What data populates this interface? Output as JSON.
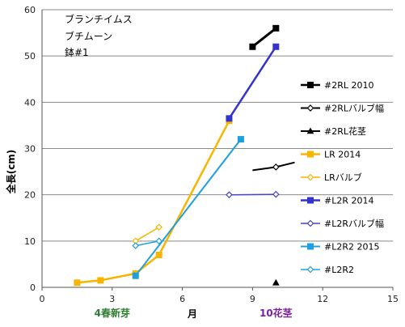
{
  "chart_data": {
    "type": "line",
    "title_lines": [
      "ブランチイムス",
      "ブチムーン",
      "鉢#1"
    ],
    "xlabel": "月",
    "ylabel": "全長(cm)",
    "xlim": [
      0,
      15
    ],
    "ylim": [
      0,
      60
    ],
    "xticks": [
      "0",
      "3",
      "6",
      "9",
      "12",
      "15"
    ],
    "yticks": [
      "0",
      "10",
      "20",
      "30",
      "40",
      "50",
      "60"
    ],
    "grid": "horizontal",
    "legend_position": "right",
    "annotations": [
      {
        "text": "4春新芽",
        "x": 3,
        "color": "#2e7d32"
      },
      {
        "text": "10花茎",
        "x": 10,
        "color": "#7b1fa2"
      }
    ],
    "series": [
      {
        "name": "#2RL 2010",
        "color": "#000000",
        "marker": "square-filled",
        "width": 3,
        "points": [
          [
            9.0,
            52
          ],
          [
            10.0,
            56
          ]
        ]
      },
      {
        "name": "#2RLバルブ幅",
        "color": "#000000",
        "marker": "diamond-open",
        "width": 2,
        "points": [
          [
            9.0,
            25.3
          ],
          [
            10.0,
            26
          ],
          [
            10.8,
            27
          ]
        ]
      },
      {
        "name": "#2RL花茎",
        "color": "#000000",
        "marker": "triangle-filled",
        "width": 2,
        "points": [
          [
            10.0,
            1
          ]
        ]
      },
      {
        "name": "LR 2014",
        "color": "#f7b500",
        "marker": "square-filled",
        "width": 2.5,
        "points": [
          [
            1.5,
            1
          ],
          [
            2.5,
            1.5
          ],
          [
            4.0,
            3
          ],
          [
            5.0,
            7
          ],
          [
            8.0,
            36
          ]
        ]
      },
      {
        "name": "LRバルブ",
        "color": "#f7b500",
        "marker": "diamond-open",
        "width": 1.5,
        "points": [
          [
            4.0,
            10
          ],
          [
            5.0,
            13
          ]
        ]
      },
      {
        "name": "#L2R 2014",
        "color": "#3333cc",
        "marker": "square-filled",
        "width": 2.5,
        "points": [
          [
            8.0,
            36.5
          ],
          [
            10.0,
            52
          ]
        ]
      },
      {
        "name": "#L2Rバルブ幅",
        "color": "#4444cc",
        "marker": "diamond-open",
        "width": 1.5,
        "points": [
          [
            8.0,
            20
          ],
          [
            10.0,
            20.1
          ]
        ]
      },
      {
        "name": "#L2R2 2015",
        "color": "#1ea0dc",
        "marker": "square-filled",
        "width": 2,
        "points": [
          [
            4.0,
            2.5
          ],
          [
            8.5,
            32
          ]
        ]
      },
      {
        "name": "#L2R2",
        "color": "#1ea0dc",
        "marker": "diamond-open",
        "width": 1.5,
        "points": [
          [
            4.0,
            9
          ],
          [
            5.0,
            10
          ]
        ]
      }
    ]
  }
}
